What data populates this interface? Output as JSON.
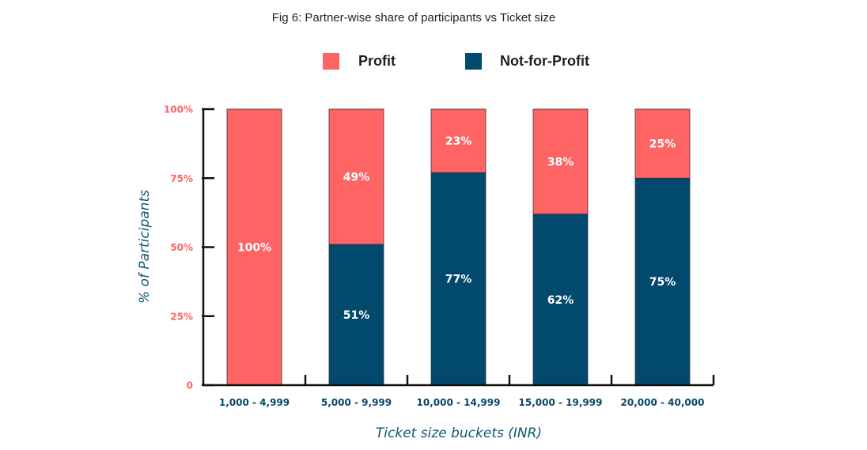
{
  "chart_data": {
    "type": "bar",
    "stacked": true,
    "title": "Fig 6: Partner-wise share of participants vs Ticket size",
    "xlabel": "Ticket size buckets (INR)",
    "ylabel": "% of Participants",
    "ylim": [
      0,
      100
    ],
    "yticks": [
      {
        "value": 0,
        "label": "0"
      },
      {
        "value": 25,
        "label": "25%"
      },
      {
        "value": 50,
        "label": "50%"
      },
      {
        "value": 75,
        "label": "75%"
      },
      {
        "value": 100,
        "label": "100%"
      }
    ],
    "categories": [
      "1,000 - 4,999",
      "5,000 - 9,999",
      "10,000 - 14,999",
      "15,000 - 19,999",
      "20,000 - 40,000"
    ],
    "series": [
      {
        "name": "Not-for-Profit",
        "color": "#02496E",
        "values": [
          0,
          51,
          77,
          62,
          75
        ],
        "labels": [
          "",
          "51%",
          "77%",
          "62%",
          "75%"
        ]
      },
      {
        "name": "Profit",
        "color": "#FF6464",
        "values": [
          100,
          49,
          23,
          38,
          25
        ],
        "labels": [
          "100%",
          "49%",
          "23%",
          "38%",
          "25%"
        ]
      }
    ],
    "legend": {
      "position": "top",
      "entries": [
        {
          "name": "Profit",
          "color": "#FF6464"
        },
        {
          "name": "Not-for-Profit",
          "color": "#02496E"
        }
      ]
    },
    "colors": {
      "tick_label": "#FF6464",
      "category_label": "#084766",
      "axis_title": "#0F5673",
      "axis_line": "#111111"
    },
    "grid": false
  }
}
